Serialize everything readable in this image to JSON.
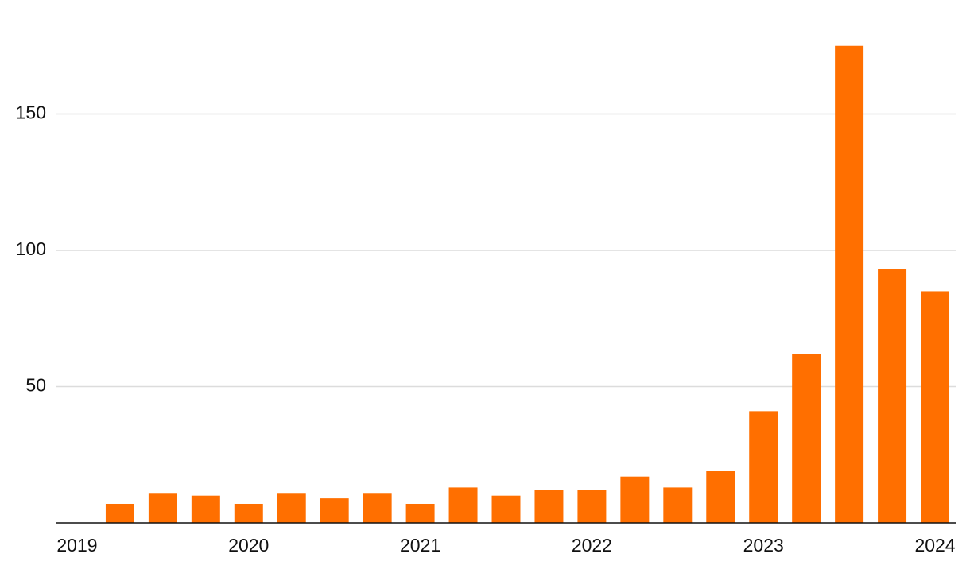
{
  "chart_data": {
    "type": "bar",
    "x": [
      2019.25,
      2019.5,
      2019.75,
      2020,
      2020.25,
      2020.5,
      2020.75,
      2021,
      2021.25,
      2021.5,
      2021.75,
      2022,
      2022.25,
      2022.5,
      2022.75,
      2023,
      2023.25,
      2023.5,
      2023.75,
      2024
    ],
    "values": [
      7,
      11,
      10,
      7,
      11,
      9,
      11,
      7,
      13,
      10,
      12,
      12,
      17,
      13,
      19,
      41,
      62,
      175,
      93,
      85
    ],
    "color": "#ff6f00",
    "xlim": [
      2018.875,
      2024.125
    ],
    "xticks": [
      2019,
      2020,
      2021,
      2022,
      2023,
      2024
    ],
    "ylim": [
      0,
      190
    ],
    "yticks": [
      50,
      100,
      150
    ],
    "grid": true
  }
}
